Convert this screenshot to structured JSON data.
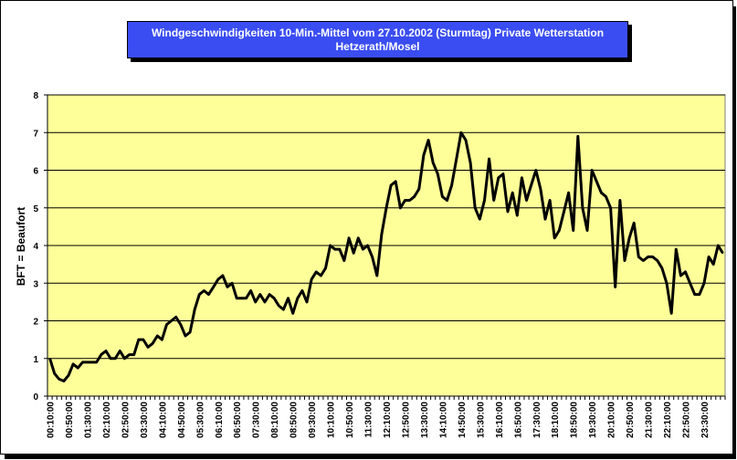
{
  "chart_data": {
    "type": "line",
    "title_line1": "Windgeschwindigkeiten 10-Min.-Mittel vom 27.10.2002 (Sturmtag) Private Wetterstation",
    "title_line2": "Hetzerath/Mosel",
    "ylabel": "BFT = Beaufort",
    "xlabel": "",
    "ylim": [
      0,
      8
    ],
    "yticks": [
      0,
      1,
      2,
      3,
      4,
      5,
      6,
      7,
      8
    ],
    "grid": "horizontal",
    "plot_background": "#ffff99",
    "line_color": "#000000",
    "title_background": "#3a4df2",
    "xtick_labels": [
      "00:10:00",
      "00:50:00",
      "01:30:00",
      "02:10:00",
      "02:50:00",
      "03:30:00",
      "04:10:00",
      "04:50:00",
      "05:30:00",
      "06:10:00",
      "06:50:00",
      "07:30:00",
      "08:10:00",
      "08:50:00",
      "09:30:00",
      "10:10:00",
      "10:50:00",
      "11:30:00",
      "12:10:00",
      "12:50:00",
      "13:30:00",
      "14:10:00",
      "14:50:00",
      "15:30:00",
      "16:10:00",
      "16:50:00",
      "17:30:00",
      "18:10:00",
      "18:50:00",
      "19:30:00",
      "20:10:00",
      "20:50:00",
      "21:30:00",
      "22:10:00",
      "22:50:00",
      "23:30:00"
    ],
    "series": [
      {
        "values": [
          1.0,
          0.6,
          0.45,
          0.4,
          0.55,
          0.85,
          0.75,
          0.9,
          0.9,
          0.9,
          0.9,
          1.1,
          1.2,
          1.0,
          1.0,
          1.2,
          1.0,
          1.1,
          1.1,
          1.5,
          1.5,
          1.3,
          1.4,
          1.6,
          1.5,
          1.9,
          2.0,
          2.1,
          1.9,
          1.6,
          1.7,
          2.3,
          2.7,
          2.8,
          2.7,
          2.9,
          3.1,
          3.2,
          2.9,
          3.0,
          2.6,
          2.6,
          2.6,
          2.8,
          2.5,
          2.7,
          2.5,
          2.7,
          2.6,
          2.4,
          2.3,
          2.6,
          2.2,
          2.6,
          2.8,
          2.5,
          3.1,
          3.3,
          3.2,
          3.4,
          4.0,
          3.9,
          3.9,
          3.6,
          4.2,
          3.8,
          4.2,
          3.9,
          4.0,
          3.7,
          3.2,
          4.3,
          5.0,
          5.6,
          5.7,
          5.0,
          5.2,
          5.2,
          5.3,
          5.5,
          6.4,
          6.8,
          6.2,
          5.9,
          5.3,
          5.2,
          5.6,
          6.3,
          7.0,
          6.8,
          6.2,
          5.0,
          4.7,
          5.2,
          6.3,
          5.2,
          5.8,
          5.9,
          4.9,
          5.4,
          4.8,
          5.8,
          5.2,
          5.6,
          6.0,
          5.5,
          4.7,
          5.2,
          4.2,
          4.4,
          4.9,
          5.4,
          4.4,
          6.9,
          5.0,
          4.4,
          6.0,
          5.7,
          5.4,
          5.3,
          5.0,
          2.9,
          5.2,
          3.6,
          4.2,
          4.6,
          3.7,
          3.6,
          3.7,
          3.7,
          3.6,
          3.4,
          3.0,
          2.2,
          3.9,
          3.2,
          3.3,
          3.0,
          2.7,
          2.7,
          3.0,
          3.7,
          3.5,
          4.0,
          3.8
        ]
      }
    ]
  }
}
